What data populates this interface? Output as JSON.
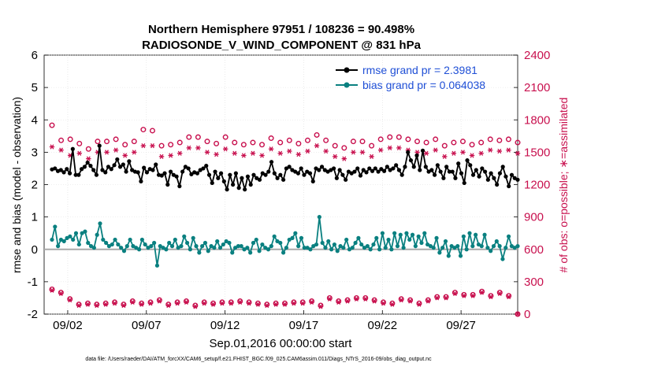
{
  "chart_data": {
    "type": "line",
    "title_line1": "Northern Hemisphere 97951 / 108236 = 90.498%",
    "title_line2": "RADIOSONDE_V_WIND_COMPONENT @ 831 hPa",
    "xlabel": "Sep.01,2016 00:00:00 start",
    "ylabel_left": "rmse and bias (model - observation)",
    "ylabel_right": "# of obs: o=possible; ∗=assimilated",
    "footnote": "data file: /Users/raeder/DAI/ATM_forcXX/CAM6_setup/f.e21.FHIST_BGC.f09_025.CAM6assim.011/Diags_NTrS_2016-09/obs_diag_output.nc",
    "ylim_left": [
      -2,
      6
    ],
    "ylim_right": [
      0,
      2400
    ],
    "xlim_days": [
      0.5,
      30.6
    ],
    "y_ticks_left": [
      "-2",
      "-1",
      "0",
      "1",
      "2",
      "3",
      "4",
      "5",
      "6"
    ],
    "y_ticks_right": [
      "0",
      "300",
      "600",
      "900",
      "1200",
      "1500",
      "1800",
      "2100",
      "2400"
    ],
    "x_ticks": [
      {
        "label": "09/02",
        "day": 2
      },
      {
        "label": "09/07",
        "day": 7
      },
      {
        "label": "09/12",
        "day": 12
      },
      {
        "label": "09/17",
        "day": 17
      },
      {
        "label": "09/22",
        "day": 22
      },
      {
        "label": "09/27",
        "day": 27
      }
    ],
    "legend": [
      {
        "label": "rmse grand pr = 2.3981",
        "color": "#000000"
      },
      {
        "label": "bias grand pr = 0.064038",
        "color": "#0a8080"
      }
    ],
    "colors": {
      "rmse": "#000000",
      "bias": "#0a8080",
      "obs": "#c8104e",
      "zero_line": "#aaaaaa",
      "legend_text": "#1f4fd6"
    },
    "series": [
      {
        "name": "rmse grand pr = 2.3981",
        "values": [
          2.47,
          2.5,
          2.42,
          2.45,
          2.38,
          2.48,
          2.35,
          3.1,
          2.3,
          2.3,
          2.48,
          2.55,
          2.68,
          2.58,
          2.45,
          2.3,
          3.2,
          2.45,
          2.38,
          2.55,
          2.48,
          2.6,
          2.78,
          2.55,
          2.62,
          2.4,
          2.72,
          2.45,
          2.4,
          2.38,
          2.1,
          2.52,
          2.38,
          2.48,
          2.45,
          2.62,
          2.3,
          2.28,
          2.35,
          2.0,
          2.4,
          2.3,
          2.25,
          1.95,
          2.4,
          2.55,
          2.5,
          2.32,
          2.38,
          2.35,
          2.45,
          2.5,
          2.58,
          2.3,
          2.05,
          2.4,
          2.2,
          2.35,
          2.1,
          1.85,
          2.3,
          2.0,
          2.35,
          1.9,
          2.2,
          1.85,
          2.25,
          2.0,
          2.3,
          2.2,
          2.15,
          2.35,
          2.3,
          2.4,
          2.7,
          2.35,
          2.2,
          2.3,
          2.15,
          2.5,
          2.55,
          2.45,
          2.4,
          2.35,
          2.5,
          2.3,
          2.4,
          2.35,
          2.1,
          2.5,
          2.45,
          2.55,
          2.45,
          2.4,
          2.45,
          2.5,
          2.2,
          2.45,
          2.3,
          2.15,
          2.4,
          2.35,
          2.4,
          2.5,
          2.28,
          2.45,
          2.38,
          2.5,
          2.42,
          2.5,
          2.4,
          2.48,
          2.42,
          2.55,
          2.45,
          2.5,
          2.6,
          2.45,
          2.3,
          2.55,
          3.0,
          2.75,
          2.55,
          2.9,
          2.45,
          3.05,
          2.55,
          2.4,
          2.45,
          2.3,
          2.6,
          2.4,
          2.2,
          2.55,
          2.4,
          2.4,
          2.2,
          2.65,
          2.35,
          2.05,
          2.75,
          2.6,
          2.3,
          2.45,
          2.25,
          2.5,
          2.4,
          2.15,
          2.35,
          2.2,
          2.0,
          2.35,
          2.55,
          2.25,
          1.95,
          2.3,
          2.2,
          2.15
        ]
      },
      {
        "name": "bias grand pr = 0.064038",
        "values": [
          0.3,
          0.7,
          0.1,
          0.3,
          0.25,
          0.35,
          0.4,
          0.3,
          0.5,
          0.15,
          0.5,
          0.55,
          0.2,
          0.1,
          0.05,
          0.45,
          0.8,
          0.3,
          0.2,
          0.1,
          0.15,
          0.3,
          0.15,
          0.05,
          -0.05,
          0.1,
          0.3,
          0.1,
          0.05,
          0.0,
          0.3,
          0.15,
          0.05,
          0.1,
          0.2,
          -0.5,
          0.1,
          0.05,
          0.0,
          0.2,
          0.1,
          0.3,
          0.05,
          0.1,
          0.4,
          0.2,
          0.0,
          0.35,
          0.1,
          -0.1,
          0.1,
          0.2,
          -0.05,
          0.1,
          0.05,
          0.25,
          0.05,
          0.15,
          0.25,
          0.2,
          -0.1,
          0.05,
          0.1,
          0.1,
          0.0,
          0.05,
          -0.1,
          0.2,
          0.3,
          -0.05,
          0.15,
          0.05,
          0.0,
          0.1,
          0.4,
          0.25,
          0.2,
          -0.1,
          0.05,
          0.3,
          0.35,
          0.5,
          0.1,
          0.35,
          0.05,
          0.05,
          0.0,
          0.1,
          0.15,
          1.0,
          0.2,
          0.05,
          0.25,
          0.0,
          0.15,
          -0.05,
          0.1,
          0.05,
          0.3,
          0.0,
          0.05,
          0.2,
          0.35,
          0.15,
          0.05,
          0.1,
          0.0,
          0.15,
          0.35,
          0.0,
          0.5,
          0.05,
          0.3,
          0.0,
          0.5,
          0.1,
          0.45,
          0.05,
          0.5,
          0.3,
          0.45,
          0.1,
          0.4,
          0.2,
          0.5,
          0.15,
          0.1,
          0.05,
          0.35,
          -0.1,
          0.05,
          0.25,
          -0.2,
          0.1,
          0.05,
          0.1,
          -0.2,
          0.4,
          0.0,
          0.5,
          0.1,
          0.45,
          0.15,
          0.1,
          0.45,
          0.05,
          -0.05,
          0.1,
          0.25,
          0.1,
          -0.3,
          0.05,
          0.4,
          0.1,
          0.05,
          0.1
        ]
      }
    ],
    "obs_possible": [
      1750,
      1630,
      1650,
      1610,
      1620,
      1590,
      1620,
      1600,
      1520,
      1580,
      1600,
      1570,
      1530,
      1560,
      1620,
      1600,
      1640,
      1590,
      1600,
      1580,
      1560,
      1620,
      1610,
      1540,
      1570,
      1530,
      1610,
      1600,
      1640,
      1580,
      1710,
      1690,
      1650,
      1700,
      1630,
      1610,
      1560,
      1580,
      1600,
      1570,
      1610,
      1550,
      1590,
      1580,
      1670,
      1640,
      1600,
      1590,
      1640,
      1570,
      1630,
      1600,
      1650,
      1560,
      1580,
      1600,
      1620,
      1640,
      1590,
      1560,
      1590,
      1610,
      1650,
      1570,
      1600,
      1700,
      1590,
      1600,
      1620,
      1570,
      1610,
      1580,
      1630,
      1560,
      1580,
      1590,
      1600,
      1620,
      1610,
      1640,
      1690,
      1580,
      1550,
      1580,
      1610,
      1560,
      1640,
      1660,
      1620,
      1600,
      1610,
      1570,
      1590,
      1560,
      1650,
      1620,
      1540,
      1570,
      1630,
      1600,
      1620,
      1610,
      1600,
      1580,
      1630,
      1560,
      1590,
      1600,
      1620,
      1560,
      1600,
      1640,
      1560,
      1590,
      1640,
      1610,
      1570,
      1620,
      1530,
      1590,
      1600,
      1560,
      1620,
      1590,
      1540,
      1600,
      1620,
      1580,
      1640,
      1560,
      1600,
      1620,
      1590,
      1670,
      1620,
      1600,
      1560,
      1610,
      1570,
      1640,
      1600,
      1590,
      1560,
      1670,
      1620,
      1600,
      1540,
      1610,
      1580,
      1600,
      1620,
      1560,
      1650,
      1590,
      1620,
      1600
    ],
    "obs_assimilated": [
      1550,
      1500,
      1480,
      1520,
      1490,
      1500,
      1470,
      1520,
      1420,
      1490,
      1500,
      1470,
      1440,
      1460,
      1510,
      1500,
      1540,
      1490,
      1500,
      1480,
      1450,
      1520,
      1510,
      1440,
      1470,
      1430,
      1500,
      1500,
      1540,
      1480,
      1560,
      1590,
      1550,
      1560,
      1520,
      1510,
      1460,
      1480,
      1500,
      1470,
      1500,
      1450,
      1490,
      1480,
      1560,
      1540,
      1500,
      1490,
      1540,
      1470,
      1530,
      1500,
      1550,
      1460,
      1480,
      1500,
      1510,
      1530,
      1490,
      1460,
      1490,
      1500,
      1550,
      1470,
      1500,
      1580,
      1490,
      1500,
      1520,
      1470,
      1510,
      1480,
      1530,
      1460,
      1480,
      1490,
      1500,
      1520,
      1510,
      1540,
      1590,
      1480,
      1450,
      1480,
      1510,
      1460,
      1540,
      1560,
      1510,
      1500,
      1510,
      1470,
      1490,
      1460,
      1550,
      1520,
      1440,
      1470,
      1530,
      1500,
      1520,
      1510,
      1500,
      1480,
      1530,
      1460,
      1490,
      1500,
      1520,
      1460,
      1500,
      1540,
      1460,
      1490,
      1540,
      1510,
      1470,
      1520,
      1430,
      1490,
      1500,
      1460,
      1520,
      1490,
      1440,
      1500,
      1520,
      1480,
      1540,
      1460,
      1500,
      1520,
      1490,
      1570,
      1520,
      1500,
      1460,
      1510,
      1470,
      1540,
      1500,
      1490,
      1460,
      1570,
      1520,
      1500,
      1440,
      1510,
      1480,
      1500,
      1520,
      1460,
      1550,
      1490,
      1520,
      1500
    ],
    "obs_low_possible": [
      230,
      240,
      220,
      200,
      130,
      150,
      140,
      120,
      80,
      90,
      110,
      120,
      100,
      80,
      110,
      90,
      110,
      120,
      100,
      90,
      120,
      110,
      80,
      100,
      90,
      100,
      130,
      120,
      130,
      110,
      100,
      120,
      130,
      110,
      120,
      100,
      130,
      120,
      110,
      90,
      100,
      130,
      110,
      100,
      90,
      120,
      110,
      90,
      80,
      100,
      120,
      110,
      100,
      90,
      100,
      80,
      90,
      110,
      120,
      100,
      110,
      90,
      100,
      120,
      110,
      100,
      110,
      110,
      100,
      100,
      110,
      120,
      90,
      110,
      120,
      100,
      120,
      110,
      100,
      100,
      90,
      110,
      120,
      130,
      110,
      100,
      90,
      120,
      110,
      100,
      80,
      90,
      110,
      150,
      160,
      140,
      120,
      160,
      140,
      130,
      150,
      170,
      150,
      130,
      110,
      150,
      140,
      160,
      130,
      120,
      100,
      110,
      140,
      130,
      100,
      120,
      110,
      140,
      160,
      150,
      130,
      140,
      120,
      100,
      90,
      110,
      130,
      140,
      150,
      160,
      170,
      150,
      160,
      170,
      180,
      200,
      190,
      200,
      180,
      190,
      170,
      180,
      160,
      200,
      210,
      190,
      180,
      170,
      220,
      230,
      200,
      180,
      190,
      170,
      150,
      140,
      0
    ]
  }
}
